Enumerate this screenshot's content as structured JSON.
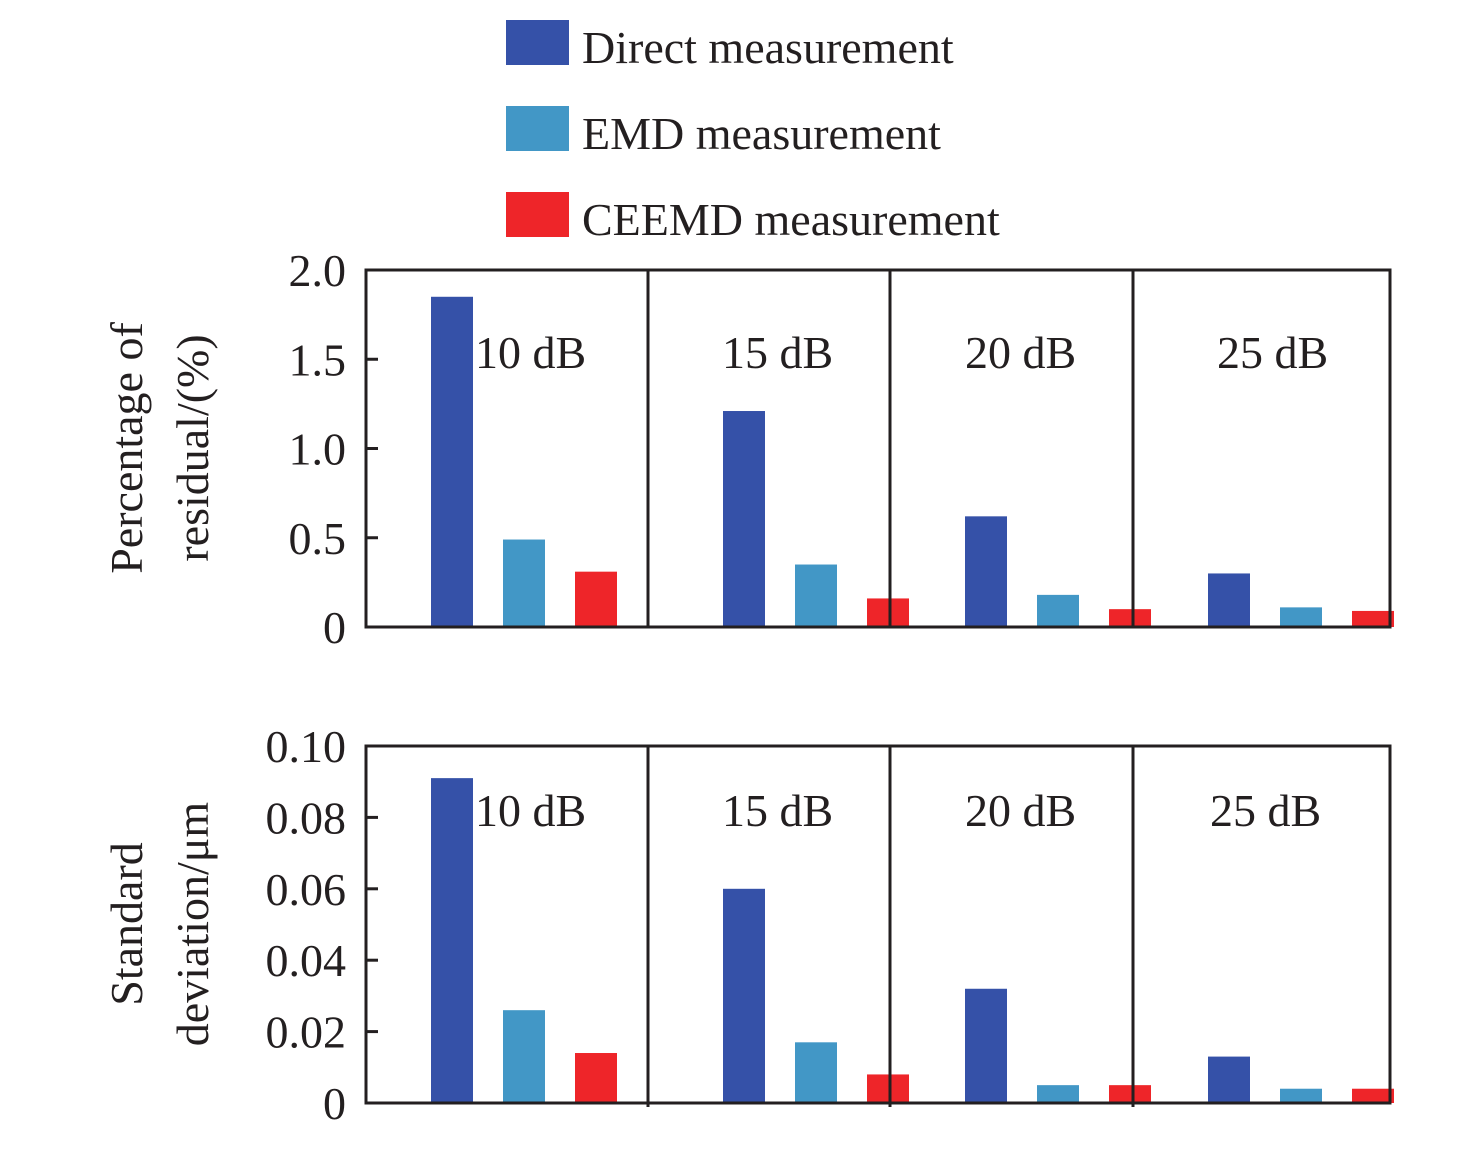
{
  "legend": [
    {
      "label": "Direct measurement",
      "color": "#3551a8"
    },
    {
      "label": "EMD measurement",
      "color": "#4297c6"
    },
    {
      "label": "CEEMD measurement",
      "color": "#ee2529"
    }
  ],
  "chart_data": [
    {
      "type": "bar",
      "ylabel_lines": [
        "Percentage of",
        "residual/(%)"
      ],
      "ylim": [
        0,
        2.0
      ],
      "yticks": [
        "0",
        "0.5",
        "1.0",
        "1.5",
        "2.0"
      ],
      "ytick_values": [
        0,
        0.5,
        1.0,
        1.5,
        2.0
      ],
      "groups": [
        "10 dB",
        "15 dB",
        "20 dB",
        "25 dB"
      ],
      "series": [
        {
          "name": "Direct measurement",
          "values": [
            1.85,
            1.21,
            0.62,
            0.3
          ]
        },
        {
          "name": "EMD measurement",
          "values": [
            0.49,
            0.35,
            0.18,
            0.11
          ]
        },
        {
          "name": "CEEMD measurement",
          "values": [
            0.31,
            0.16,
            0.1,
            0.09
          ]
        }
      ]
    },
    {
      "type": "bar",
      "ylabel_lines": [
        "Standard",
        "deviation/μm"
      ],
      "ylim": [
        0,
        0.1
      ],
      "yticks": [
        "0",
        "0.02",
        "0.04",
        "0.06",
        "0.08",
        "0.10"
      ],
      "ytick_values": [
        0,
        0.02,
        0.04,
        0.06,
        0.08,
        0.1
      ],
      "groups": [
        "10 dB",
        "15 dB",
        "20 dB",
        "25 dB"
      ],
      "series": [
        {
          "name": "Direct measurement",
          "values": [
            0.091,
            0.06,
            0.032,
            0.013
          ]
        },
        {
          "name": "EMD measurement",
          "values": [
            0.026,
            0.017,
            0.005,
            0.004
          ]
        },
        {
          "name": "CEEMD measurement",
          "values": [
            0.014,
            0.008,
            0.005,
            0.004
          ]
        }
      ]
    }
  ]
}
